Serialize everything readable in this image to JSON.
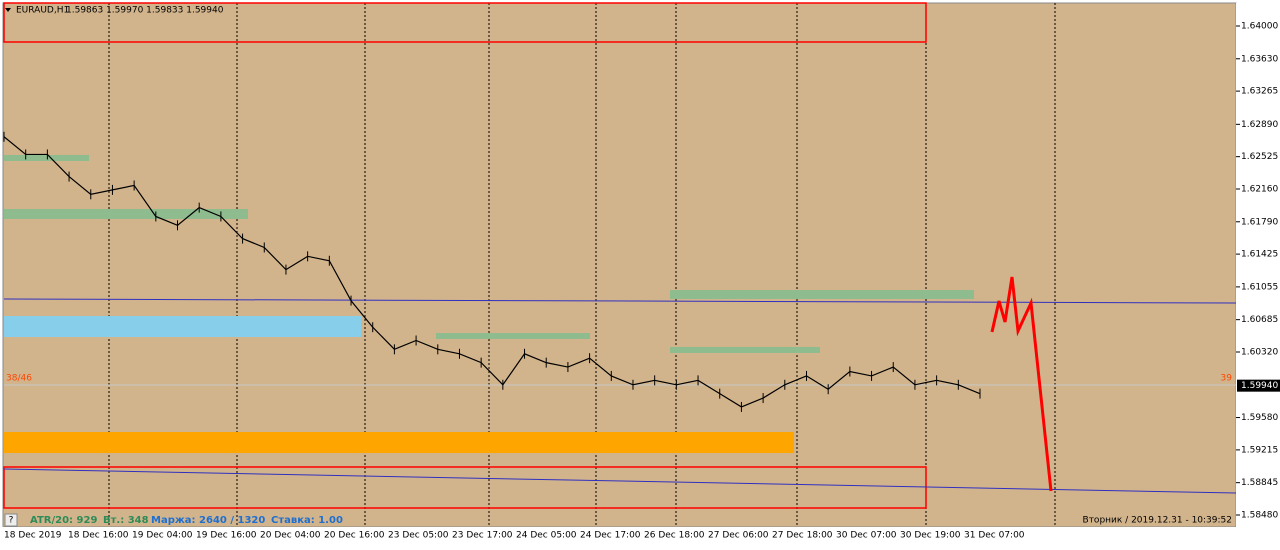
{
  "header": {
    "symbol": "EURAUD,H1",
    "ohlc": "1.59863 1.59970 1.59833 1.59940"
  },
  "price_axis": [
    "1.64000",
    "1.63630",
    "1.63265",
    "1.62890",
    "1.62525",
    "1.62160",
    "1.61790",
    "1.61425",
    "1.61055",
    "1.60685",
    "1.60320",
    "1.59580",
    "1.59215",
    "1.58845",
    "1.58480"
  ],
  "current_price": "1.59940",
  "time_axis": [
    "18 Dec 2019",
    "18 Dec 16:00",
    "19 Dec 04:00",
    "19 Dec 16:00",
    "20 Dec 04:00",
    "20 Dec 16:00",
    "23 Dec 05:00",
    "23 Dec 17:00",
    "24 Dec 05:00",
    "24 Dec 17:00",
    "26 Dec 18:00",
    "27 Dec 06:00",
    "27 Dec 18:00",
    "30 Dec 07:00",
    "30 Dec 19:00",
    "31 Dec 07:00"
  ],
  "closes": [
    1.6275,
    1.6255,
    1.6255,
    1.623,
    1.621,
    1.6215,
    1.622,
    1.6185,
    1.6175,
    1.6195,
    1.6185,
    1.616,
    1.615,
    1.6125,
    1.614,
    1.6135,
    1.609,
    1.606,
    1.6035,
    1.6045,
    1.6035,
    1.603,
    1.602,
    1.5995,
    1.603,
    1.602,
    1.6015,
    1.6025,
    1.6005,
    1.5995,
    1.6,
    1.5995,
    1.6,
    1.5985,
    1.597,
    1.598,
    1.5995,
    1.6005,
    1.599,
    1.601,
    1.6005,
    1.6015,
    1.5995,
    1.6,
    1.5995,
    1.5985
  ],
  "left_counter": "38/46",
  "right_counter": "39",
  "status": {
    "help": "?",
    "atr": "ATR/20: 929",
    "lots": "Вт.: 348",
    "margin": "Маржа: 2640 / 1320",
    "rate": "Ставка: 1.00"
  },
  "datetime": "Вторник  /  2019.12.31  -  10:39:52"
}
